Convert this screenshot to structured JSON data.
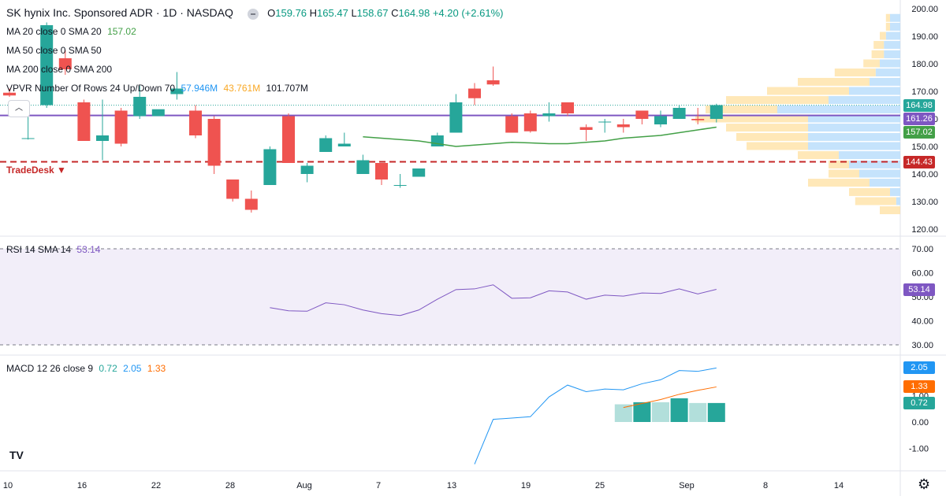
{
  "header": {
    "symbol": "SK hynix Inc. Sponsored ADR · 1D · NASDAQ",
    "open_label": "O",
    "open": "159.76",
    "high_label": "H",
    "high": "165.47",
    "low_label": "L",
    "low": "158.67",
    "close_label": "C",
    "close": "164.98",
    "change": "+4.20 (+2.61%)"
  },
  "indicators": {
    "ma20": {
      "label": "MA 20 close 0 SMA 20",
      "value": "157.02"
    },
    "ma50": {
      "label": "MA 50 close 0 SMA 50",
      "value": ""
    },
    "ma200": {
      "label": "MA 200 close 0 SMA 200",
      "value": ""
    },
    "vpvr": {
      "label": "VPVR Number Of Rows 24 Up/Down 70",
      "up": "57.946M",
      "down": "43.761M",
      "total": "101.707M"
    },
    "rsi": {
      "label": "RSI 14 SMA 14",
      "value": "53.14"
    },
    "macd": {
      "label": "MACD 12 26 close 9",
      "hist": "0.72",
      "macd": "2.05",
      "signal": "1.33"
    }
  },
  "price_tags": {
    "last": "164.98",
    "poc": "161.26",
    "ma20": "157.02",
    "tradedesk": "144.43",
    "rsi": "53.14",
    "macd": "2.05",
    "signal": "1.33",
    "hist": "0.72"
  },
  "tradedesk_label": "TradeDesk",
  "collapse_icon": "chevron-up-icon",
  "logo": "TV",
  "colors": {
    "up": "#26a69a",
    "down": "#ef5350",
    "ma": "#43a047",
    "poc": "#7e57c2",
    "rsi": "#7e57c2",
    "macd": "#2196f3",
    "signal": "#ff6d00",
    "alert": "#c62828"
  },
  "price_axis": [
    "200.00",
    "190.00",
    "180.00",
    "170.00",
    "160.00",
    "150.00",
    "140.00",
    "130.00",
    "120.00"
  ],
  "rsi_axis": [
    "70.00",
    "60.00",
    "50.00",
    "40.00",
    "30.00"
  ],
  "macd_axis": [
    "1.00",
    "0.00",
    "-1.00"
  ],
  "time_axis": [
    "10",
    "16",
    "22",
    "28",
    "Aug",
    "7",
    "13",
    "19",
    "25",
    "Sep",
    "8",
    "14"
  ],
  "chart_data": {
    "type": "candlestick",
    "ylim": [
      120,
      200
    ],
    "candles": [
      {
        "o": 169.5,
        "h": 171,
        "l": 168,
        "c": 168.5
      },
      {
        "o": 153,
        "h": 161,
        "l": 152.5,
        "c": 153
      },
      {
        "o": 165,
        "h": 195,
        "l": 164,
        "c": 194
      },
      {
        "o": 182,
        "h": 185,
        "l": 176,
        "c": 178
      },
      {
        "o": 166,
        "h": 167,
        "l": 152,
        "c": 152
      },
      {
        "o": 152,
        "h": 167,
        "l": 145,
        "c": 154
      },
      {
        "o": 163,
        "h": 164,
        "l": 150,
        "c": 151
      },
      {
        "o": 161,
        "h": 172,
        "l": 160,
        "c": 168
      },
      {
        "o": 161,
        "h": 163,
        "l": 161,
        "c": 163.5
      },
      {
        "o": 169,
        "h": 177,
        "l": 167,
        "c": 171
      },
      {
        "o": 163,
        "h": 165,
        "l": 153,
        "c": 154
      },
      {
        "o": 160,
        "h": 161,
        "l": 140,
        "c": 143
      },
      {
        "o": 138,
        "h": 138,
        "l": 130,
        "c": 131
      },
      {
        "o": 131,
        "h": 134,
        "l": 126,
        "c": 127
      },
      {
        "o": 136,
        "h": 150,
        "l": 136,
        "c": 149
      },
      {
        "o": 161,
        "h": 162,
        "l": 144,
        "c": 144
      },
      {
        "o": 140,
        "h": 144,
        "l": 137,
        "c": 143
      },
      {
        "o": 148,
        "h": 154,
        "l": 148,
        "c": 153
      },
      {
        "o": 150,
        "h": 155,
        "l": 150,
        "c": 151
      },
      {
        "o": 140,
        "h": 147,
        "l": 140,
        "c": 145
      },
      {
        "o": 144,
        "h": 144,
        "l": 136,
        "c": 138
      },
      {
        "o": 136,
        "h": 140,
        "l": 135,
        "c": 136
      },
      {
        "o": 139,
        "h": 142,
        "l": 139,
        "c": 142
      },
      {
        "o": 150,
        "h": 155,
        "l": 150,
        "c": 154
      },
      {
        "o": 155,
        "h": 169,
        "l": 155,
        "c": 166
      },
      {
        "o": 171,
        "h": 173,
        "l": 165,
        "c": 167.5
      },
      {
        "o": 174,
        "h": 179,
        "l": 172,
        "c": 172.5
      },
      {
        "o": 161,
        "h": 162,
        "l": 155,
        "c": 155
      },
      {
        "o": 162,
        "h": 163,
        "l": 155,
        "c": 155.5
      },
      {
        "o": 161,
        "h": 166,
        "l": 159,
        "c": 162
      },
      {
        "o": 166,
        "h": 166,
        "l": 161,
        "c": 162
      },
      {
        "o": 157,
        "h": 158,
        "l": 152,
        "c": 156
      },
      {
        "o": 159,
        "h": 160,
        "l": 155,
        "c": 159
      },
      {
        "o": 158,
        "h": 160,
        "l": 155,
        "c": 157
      },
      {
        "o": 163,
        "h": 163,
        "l": 158,
        "c": 160
      },
      {
        "o": 158,
        "h": 163,
        "l": 157,
        "c": 161
      },
      {
        "o": 160,
        "h": 165,
        "l": 160,
        "c": 164
      },
      {
        "o": 160,
        "h": 164,
        "l": 158,
        "c": 159.5
      },
      {
        "o": 160,
        "h": 165.5,
        "l": 158.7,
        "c": 165
      }
    ],
    "ma20": [
      null,
      null,
      null,
      null,
      null,
      null,
      null,
      null,
      null,
      null,
      null,
      null,
      null,
      null,
      null,
      null,
      null,
      null,
      null,
      153.5,
      153,
      152.5,
      152,
      151,
      150,
      150.5,
      151,
      151.5,
      151.3,
      151,
      151,
      151.5,
      152,
      153,
      153.5,
      154,
      155,
      156,
      157
    ],
    "rsi": [
      null,
      null,
      null,
      null,
      null,
      null,
      null,
      null,
      null,
      null,
      null,
      null,
      null,
      null,
      45.5,
      44.2,
      44,
      47.5,
      46.7,
      44.5,
      43,
      42.2,
      44.5,
      49,
      53,
      53.3,
      55,
      49.4,
      49.6,
      52.5,
      52,
      49,
      50.7,
      50.3,
      51.6,
      51.4,
      53.3,
      51.2,
      53.1
    ],
    "macd": [
      null,
      null,
      null,
      null,
      null,
      null,
      null,
      null,
      null,
      null,
      null,
      null,
      null,
      null,
      null,
      null,
      null,
      null,
      null,
      null,
      null,
      null,
      null,
      null,
      null,
      -1.6,
      0.1,
      0.15,
      0.2,
      0.95,
      1.4,
      1.15,
      1.25,
      1.22,
      1.45,
      1.6,
      1.95,
      1.92,
      2.05
    ],
    "signal": [
      null,
      null,
      null,
      null,
      null,
      null,
      null,
      null,
      null,
      null,
      null,
      null,
      null,
      null,
      null,
      null,
      null,
      null,
      null,
      null,
      null,
      null,
      null,
      null,
      null,
      null,
      null,
      null,
      null,
      null,
      null,
      null,
      null,
      0.55,
      0.7,
      0.85,
      1.05,
      1.2,
      1.33
    ],
    "hist": [
      null,
      null,
      null,
      null,
      null,
      null,
      null,
      null,
      null,
      null,
      null,
      null,
      null,
      null,
      null,
      null,
      null,
      null,
      null,
      null,
      null,
      null,
      null,
      null,
      null,
      null,
      null,
      null,
      null,
      null,
      null,
      null,
      null,
      0.67,
      0.75,
      0.75,
      0.9,
      0.72,
      0.72
    ],
    "volume_profile": [
      {
        "price": 196.5,
        "up": 0.05,
        "down": 0.02
      },
      {
        "price": 193.3,
        "up": 0.05,
        "down": 0.02
      },
      {
        "price": 190,
        "up": 0.07,
        "down": 0.03
      },
      {
        "price": 186.7,
        "up": 0.08,
        "down": 0.05
      },
      {
        "price": 183.3,
        "up": 0.08,
        "down": 0.06
      },
      {
        "price": 180,
        "up": 0.1,
        "down": 0.08
      },
      {
        "price": 176.7,
        "up": 0.12,
        "down": 0.2
      },
      {
        "price": 173.3,
        "up": 0.15,
        "down": 0.35
      },
      {
        "price": 170,
        "up": 0.25,
        "down": 0.4
      },
      {
        "price": 166.7,
        "up": 0.35,
        "down": 0.5
      },
      {
        "price": 163.3,
        "up": 0.6,
        "down": 0.35
      },
      {
        "price": 160,
        "up": 0.45,
        "down": 0.55
      },
      {
        "price": 156.7,
        "up": 0.45,
        "down": 0.4
      },
      {
        "price": 153.3,
        "up": 0.45,
        "down": 0.35
      },
      {
        "price": 150,
        "up": 0.45,
        "down": 0.3
      },
      {
        "price": 146.7,
        "up": 0.3,
        "down": 0.2
      },
      {
        "price": 143.3,
        "up": 0.25,
        "down": 0.1
      },
      {
        "price": 140,
        "up": 0.2,
        "down": 0.15
      },
      {
        "price": 136.7,
        "up": 0.15,
        "down": 0.3
      },
      {
        "price": 133.3,
        "up": 0.05,
        "down": 0.2
      },
      {
        "price": 130,
        "up": 0.02,
        "down": 0.2
      },
      {
        "price": 126.7,
        "up": 0.0,
        "down": 0.1
      }
    ]
  }
}
